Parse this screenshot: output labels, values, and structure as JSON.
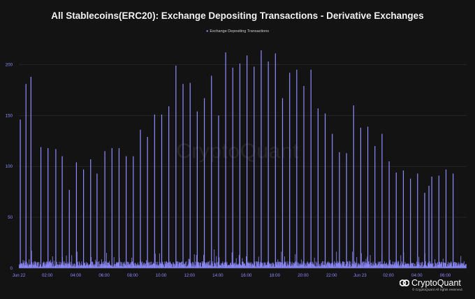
{
  "chart_data": {
    "type": "bar",
    "title": "All Stablecoins(ERC20): Exchange Depositing Transactions - Derivative Exchanges",
    "legend": [
      "Exchange Depositing Transactions"
    ],
    "legend_position": "top-center",
    "grid": true,
    "ylim": [
      0,
      225
    ],
    "y_ticks": [
      0,
      50,
      100,
      150,
      200
    ],
    "x_ticks": [
      "Jun 22",
      "02:00",
      "04:00",
      "06:00",
      "08:00",
      "10:00",
      "12:00",
      "14:00",
      "16:00",
      "18:00",
      "20:00",
      "22:00",
      "Jun 23",
      "02:00",
      "04:00",
      "06:00"
    ],
    "x_range_hours": [
      0,
      31.5
    ],
    "series": [
      {
        "name": "Exchange Depositing Transactions",
        "color": "#8f8cff",
        "spikes": [
          {
            "t": 0.1,
            "v": 146
          },
          {
            "t": 0.5,
            "v": 181
          },
          {
            "t": 0.85,
            "v": 188
          },
          {
            "t": 1.55,
            "v": 119
          },
          {
            "t": 2.05,
            "v": 118
          },
          {
            "t": 2.6,
            "v": 117
          },
          {
            "t": 3.05,
            "v": 110
          },
          {
            "t": 3.55,
            "v": 77
          },
          {
            "t": 4.05,
            "v": 104
          },
          {
            "t": 4.55,
            "v": 97
          },
          {
            "t": 5.05,
            "v": 107
          },
          {
            "t": 5.5,
            "v": 93
          },
          {
            "t": 6.05,
            "v": 115
          },
          {
            "t": 6.55,
            "v": 118
          },
          {
            "t": 7.05,
            "v": 118
          },
          {
            "t": 7.55,
            "v": 110
          },
          {
            "t": 8.05,
            "v": 110
          },
          {
            "t": 8.55,
            "v": 136
          },
          {
            "t": 9.05,
            "v": 129
          },
          {
            "t": 9.55,
            "v": 151
          },
          {
            "t": 10.05,
            "v": 151
          },
          {
            "t": 10.55,
            "v": 159
          },
          {
            "t": 11.05,
            "v": 199
          },
          {
            "t": 11.55,
            "v": 181
          },
          {
            "t": 12.05,
            "v": 182
          },
          {
            "t": 12.55,
            "v": 154
          },
          {
            "t": 13.05,
            "v": 167
          },
          {
            "t": 13.55,
            "v": 189
          },
          {
            "t": 14.05,
            "v": 150
          },
          {
            "t": 14.55,
            "v": 212
          },
          {
            "t": 15.05,
            "v": 197
          },
          {
            "t": 15.55,
            "v": 201
          },
          {
            "t": 16.05,
            "v": 209
          },
          {
            "t": 16.55,
            "v": 198
          },
          {
            "t": 17.05,
            "v": 214
          },
          {
            "t": 17.55,
            "v": 203
          },
          {
            "t": 18.05,
            "v": 211
          },
          {
            "t": 18.55,
            "v": 167
          },
          {
            "t": 19.05,
            "v": 192
          },
          {
            "t": 19.55,
            "v": 195
          },
          {
            "t": 20.05,
            "v": 179
          },
          {
            "t": 20.55,
            "v": 195
          },
          {
            "t": 21.05,
            "v": 157
          },
          {
            "t": 21.55,
            "v": 152
          },
          {
            "t": 22.05,
            "v": 132
          },
          {
            "t": 22.55,
            "v": 114
          },
          {
            "t": 23.05,
            "v": 113
          },
          {
            "t": 23.55,
            "v": 160
          },
          {
            "t": 24.05,
            "v": 138
          },
          {
            "t": 24.55,
            "v": 139
          },
          {
            "t": 25.05,
            "v": 120
          },
          {
            "t": 25.55,
            "v": 132
          },
          {
            "t": 26.05,
            "v": 105
          },
          {
            "t": 26.55,
            "v": 94
          },
          {
            "t": 27.05,
            "v": 96
          },
          {
            "t": 27.55,
            "v": 88
          },
          {
            "t": 28.05,
            "v": 93
          },
          {
            "t": 28.55,
            "v": 74
          },
          {
            "t": 28.85,
            "v": 81
          },
          {
            "t": 29.05,
            "v": 90
          },
          {
            "t": 29.55,
            "v": 91
          },
          {
            "t": 30.05,
            "v": 97
          },
          {
            "t": 30.55,
            "v": 93
          }
        ],
        "baseline_typical": "2-12"
      }
    ]
  },
  "watermark": "CryptoQuant",
  "footer": {
    "brand": "CryptoQuant",
    "copyright": "© CryptoQuant All rights reserved."
  }
}
